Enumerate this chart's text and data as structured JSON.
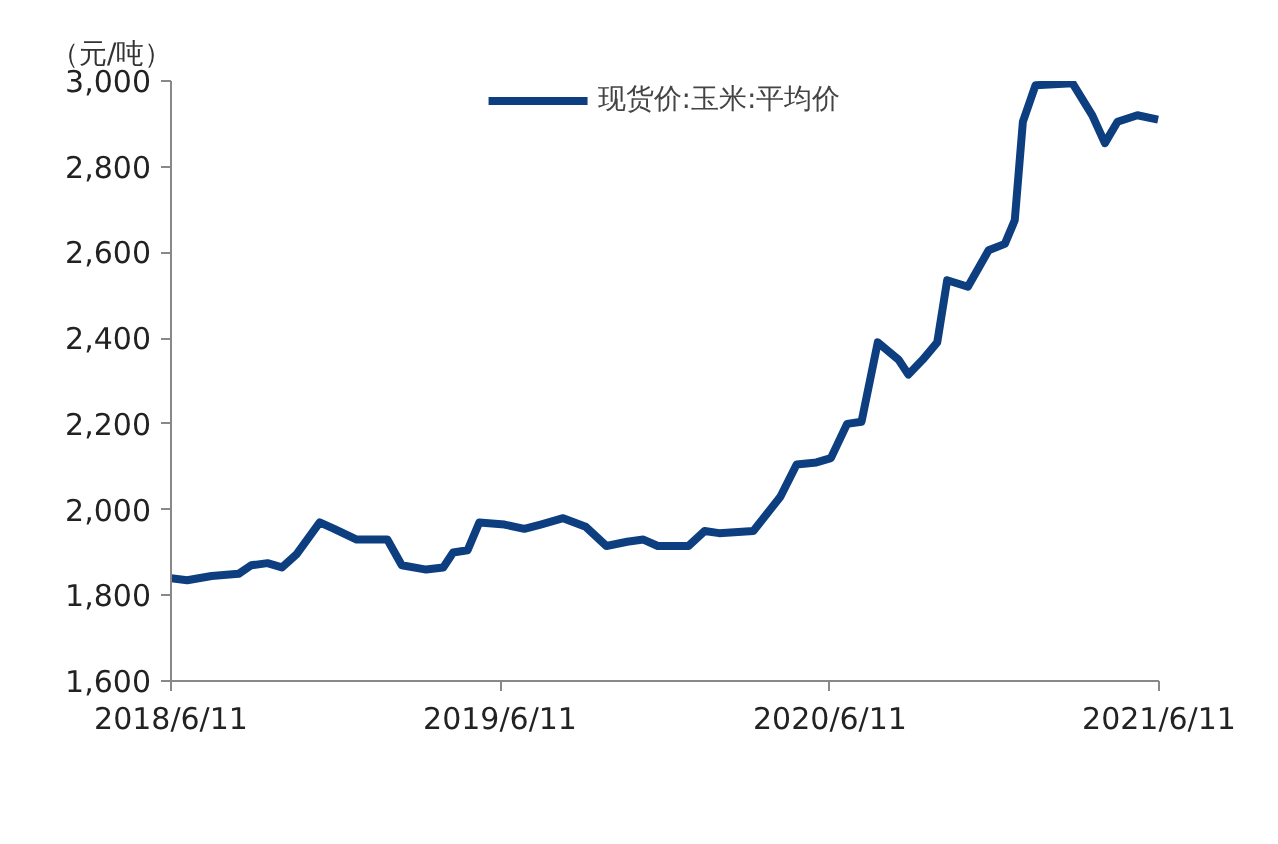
{
  "chart_data": {
    "type": "line",
    "ylabel": "（元/吨）",
    "x": [
      "2018-06-11",
      "2018-06-29",
      "2018-07-26",
      "2018-08-25",
      "2018-09-08",
      "2018-09-26",
      "2018-10-12",
      "2018-10-28",
      "2018-11-23",
      "2018-12-09",
      "2019-01-03",
      "2019-02-06",
      "2019-02-22",
      "2019-03-21",
      "2019-04-09",
      "2019-04-20",
      "2019-05-06",
      "2019-05-19",
      "2019-06-16",
      "2019-07-08",
      "2019-07-26",
      "2019-08-20",
      "2019-09-14",
      "2019-10-07",
      "2019-10-30",
      "2019-11-17",
      "2019-12-03",
      "2020-01-06",
      "2020-01-24",
      "2020-02-09",
      "2020-03-18",
      "2020-04-17",
      "2020-05-05",
      "2020-05-27",
      "2020-06-12",
      "2020-06-30",
      "2020-07-16",
      "2020-08-03",
      "2020-08-26",
      "2020-09-06",
      "2020-09-22",
      "2020-10-08",
      "2020-10-19",
      "2020-11-11",
      "2020-12-04",
      "2020-12-22",
      "2021-01-02",
      "2021-01-11",
      "2021-01-25",
      "2021-03-07",
      "2021-03-29",
      "2021-04-12",
      "2021-04-26",
      "2021-05-18",
      "2021-06-10"
    ],
    "series": [
      {
        "name": "现货价:玉米:平均价",
        "color": "#0d3f80",
        "values": [
          1840,
          1835,
          1845,
          1850,
          1870,
          1875,
          1865,
          1895,
          1970,
          1955,
          1930,
          1930,
          1870,
          1860,
          1865,
          1900,
          1905,
          1970,
          1965,
          1955,
          1965,
          1980,
          1960,
          1915,
          1925,
          1930,
          1915,
          1915,
          1950,
          1945,
          1950,
          2030,
          2105,
          2110,
          2120,
          2200,
          2205,
          2390,
          2350,
          2315,
          2350,
          2390,
          2535,
          2520,
          2605,
          2620,
          2675,
          2905,
          2990,
          2995,
          2920,
          2855,
          2905,
          2920,
          2910
        ]
      }
    ],
    "xlim": [
      "2018-06-11",
      "2021-06-11"
    ],
    "xticks": [
      {
        "value": "2018-06-11",
        "label": "2018/6/11"
      },
      {
        "value": "2019-06-11",
        "label": "2019/6/11"
      },
      {
        "value": "2020-06-11",
        "label": "2020/6/11"
      },
      {
        "value": "2021-06-11",
        "label": "2021/6/11"
      }
    ],
    "ylim": [
      1600,
      3000
    ],
    "yticks": [
      {
        "value": 1600,
        "label": "1,600"
      },
      {
        "value": 1800,
        "label": "1,800"
      },
      {
        "value": 2000,
        "label": "2,000"
      },
      {
        "value": 2200,
        "label": "2,200"
      },
      {
        "value": 2400,
        "label": "2,400"
      },
      {
        "value": 2600,
        "label": "2,600"
      },
      {
        "value": 2800,
        "label": "2,800"
      },
      {
        "value": 3000,
        "label": "3,000"
      }
    ],
    "grid": false,
    "legend": "top",
    "line_style": "solid"
  }
}
